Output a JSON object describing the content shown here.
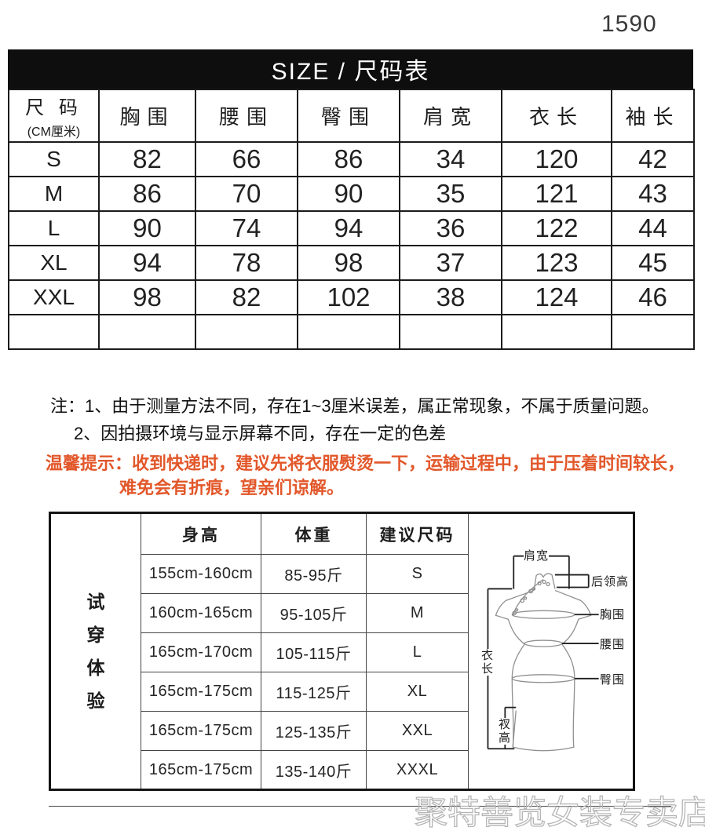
{
  "page_number": "1590",
  "size_chart": {
    "title": "SIZE / 尺码表",
    "size_header": "尺 码",
    "size_header_unit": "(CM厘米)",
    "columns": [
      "胸围",
      "腰围",
      "臀围",
      "肩宽",
      "衣长",
      "袖长"
    ],
    "rows": [
      {
        "size": "S",
        "values": [
          "82",
          "66",
          "86",
          "34",
          "120",
          "42"
        ]
      },
      {
        "size": "M",
        "values": [
          "86",
          "70",
          "90",
          "35",
          "121",
          "43"
        ]
      },
      {
        "size": "L",
        "values": [
          "90",
          "74",
          "94",
          "36",
          "122",
          "44"
        ]
      },
      {
        "size": "XL",
        "values": [
          "94",
          "78",
          "98",
          "37",
          "123",
          "45"
        ]
      },
      {
        "size": "XXL",
        "values": [
          "98",
          "82",
          "102",
          "38",
          "124",
          "46"
        ]
      },
      {
        "size": "",
        "values": [
          "",
          "",
          "",
          "",
          "",
          ""
        ]
      }
    ]
  },
  "notes": {
    "line1": "注：1、由于测量方法不同，存在1~3厘米误差，属正常现象，不属于质量问题。",
    "line2": "2、因拍摄环境与显示屏幕不同，存在一定的色差",
    "tip_label": "温馨提示：",
    "tip_line1": "收到快递时，建议先将衣服熨烫一下，运输过程中，由于压着时间较长，",
    "tip_line2": "难免会有折痕，望亲们谅解。",
    "tip_color": "#e2572a"
  },
  "fit_table": {
    "side_label": "试穿体验",
    "columns": [
      "身高",
      "体重",
      "建议尺码"
    ],
    "rows": [
      [
        "155cm-160cm",
        "85-95斤",
        "S"
      ],
      [
        "160cm-165cm",
        "95-105斤",
        "M"
      ],
      [
        "165cm-170cm",
        "105-115斤",
        "L"
      ],
      [
        "165cm-175cm",
        "115-125斤",
        "XL"
      ],
      [
        "165cm-175cm",
        "125-135斤",
        "XXL"
      ],
      [
        "165cm-175cm",
        "135-140斤",
        "XXXL"
      ]
    ]
  },
  "diagram": {
    "labels": {
      "shoulder": "肩宽",
      "back_collar": "后领高",
      "bust": "胸围",
      "waist": "腰围",
      "hip": "臀围",
      "length": "衣长",
      "slit": "衩高"
    }
  },
  "watermark": "聚特善览女装专卖店"
}
